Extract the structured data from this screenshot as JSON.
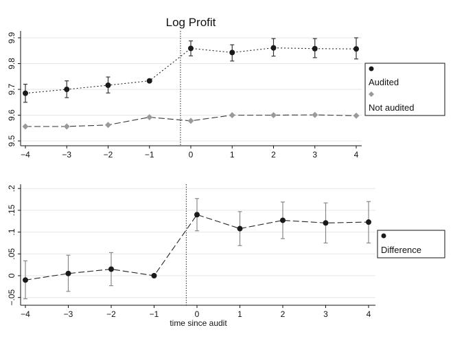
{
  "chart_data": [
    {
      "type": "line",
      "title": "Log Profit",
      "xlabel": "",
      "ylabel": "",
      "x": [
        -4,
        -3,
        -2,
        -1,
        0,
        1,
        2,
        3,
        4
      ],
      "xticks": [
        "−4",
        "−3",
        "−2",
        "−1",
        "0",
        "1",
        "2",
        "3",
        "4"
      ],
      "yticks": [
        9.5,
        9.6,
        9.7,
        9.8,
        9.9
      ],
      "ytick_labels": [
        "9.5",
        "9.6",
        "9.7",
        "9.8",
        "9.9"
      ],
      "ylim": [
        9.48,
        9.92
      ],
      "grid": true,
      "reference_line_x": -0.25,
      "legend_position": "right",
      "series": [
        {
          "name": "Audited",
          "marker": "circle",
          "color": "#1a1a1a",
          "line": "dotted",
          "values": [
            9.685,
            9.7,
            9.716,
            9.733,
            9.859,
            9.843,
            9.861,
            9.858,
            9.857
          ],
          "ci_low": [
            9.65,
            9.668,
            9.686,
            null,
            9.83,
            9.81,
            9.829,
            9.823,
            9.818
          ],
          "ci_high": [
            9.72,
            9.733,
            9.748,
            null,
            9.888,
            9.873,
            9.897,
            9.897,
            9.9
          ]
        },
        {
          "name": "Not audited",
          "marker": "diamond",
          "color": "#9a9a9a",
          "line": "dashed",
          "values": [
            9.556,
            9.556,
            9.562,
            9.592,
            9.578,
            9.6,
            9.6,
            9.601,
            9.598
          ]
        }
      ]
    },
    {
      "type": "line",
      "title": "",
      "xlabel": "time since audit",
      "ylabel": "",
      "x": [
        -4,
        -3,
        -2,
        -1,
        0,
        1,
        2,
        3,
        4
      ],
      "xticks": [
        "−4",
        "−3",
        "−2",
        "−1",
        "0",
        "1",
        "2",
        "3",
        "4"
      ],
      "yticks": [
        -0.05,
        0,
        0.05,
        0.1,
        0.15,
        0.2
      ],
      "ytick_labels": [
        "−.05",
        "0",
        ".05",
        ".1",
        ".15",
        ".2"
      ],
      "ylim": [
        -0.066,
        0.212
      ],
      "grid": true,
      "reference_line_x": -0.25,
      "legend_position": "right",
      "series": [
        {
          "name": "Difference",
          "marker": "circle",
          "color": "#1a1a1a",
          "line": "dashed",
          "values": [
            -0.01,
            0.005,
            0.015,
            0.0,
            0.14,
            0.108,
            0.127,
            0.121,
            0.123
          ],
          "ci_low": [
            -0.053,
            -0.036,
            -0.023,
            null,
            0.103,
            0.069,
            0.085,
            0.075,
            0.075
          ],
          "ci_high": [
            0.034,
            0.047,
            0.053,
            null,
            0.177,
            0.147,
            0.169,
            0.167,
            0.17
          ]
        }
      ]
    }
  ]
}
